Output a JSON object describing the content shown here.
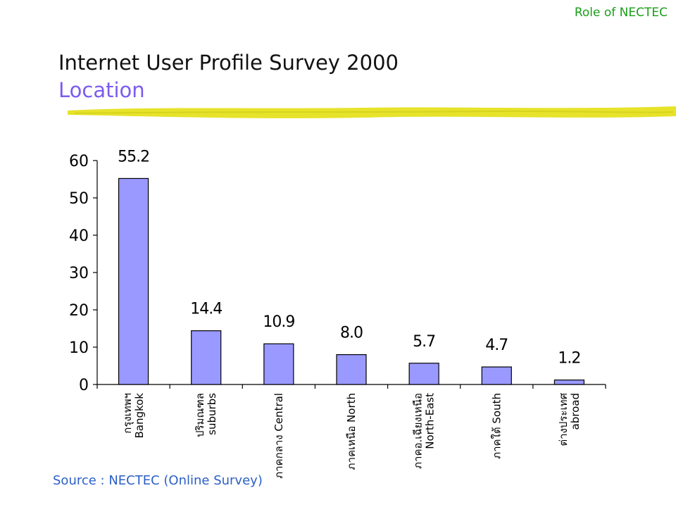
{
  "header": {
    "top_right": "Role of NECTEC",
    "title": "Internet User Profile Survey 2000",
    "subtitle": "Location",
    "accent_color": "#7b5cf0",
    "underline_color": "#e6e32a"
  },
  "chart_data": {
    "type": "bar",
    "categories": [
      [
        "กรุงเทพฯ",
        "Bangkok"
      ],
      [
        "ปริมณฑล",
        "suburbs"
      ],
      [
        "ภาคกลาง Central"
      ],
      [
        "ภาคเหนือ North"
      ],
      [
        "ภาคอ.เฉียงเหนือ",
        "North-East"
      ],
      [
        "ภาคใต้ South"
      ],
      [
        "ต่างประเทศ",
        "abroad"
      ]
    ],
    "values": [
      55.2,
      14.4,
      10.9,
      8.0,
      5.7,
      4.7,
      1.2
    ],
    "value_labels": [
      "55.2",
      "14.4",
      "10.9",
      "8.0",
      "5.7",
      "4.7",
      "1.2"
    ],
    "y_ticks": [
      "0",
      "10",
      "20",
      "30",
      "40",
      "50",
      "60"
    ],
    "ylim": [
      0,
      60
    ],
    "bar_color": "#9999ff",
    "grid": false,
    "legend": "none"
  },
  "footer": {
    "source": "Source : NECTEC (Online Survey)"
  }
}
